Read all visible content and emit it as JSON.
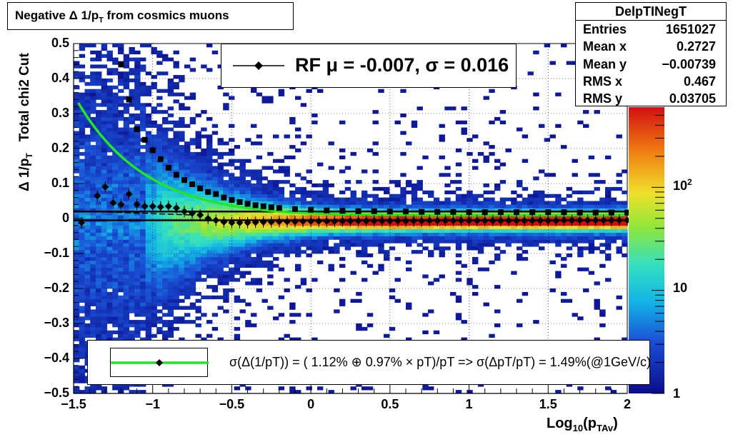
{
  "title": {
    "prefix": "Negative Δ 1/p",
    "sub": "T",
    "suffix": " from cosmics muons"
  },
  "stats": {
    "name": "DelpTINegT",
    "rows": [
      {
        "label": "Entries",
        "value": "1651027"
      },
      {
        "label": "Mean x",
        "value": "0.2727"
      },
      {
        "label": "Mean y",
        "value": "−0.00739"
      },
      {
        "label": "RMS x",
        "value": "0.467"
      },
      {
        "label": "RMS y",
        "value": "0.03705"
      }
    ]
  },
  "rf_legend": "RF μ = -0.007, σ =   0.016",
  "fit_legend": "σ(Δ(1/pT)) = ( 1.12% ⊕  0.97% × pT)/pT => σ(ΔpT/pT) =  1.49%(@1GeV/c)",
  "axes": {
    "ylabel_main": "Δ 1/p",
    "ylabel_sub": "T",
    "ylabel_extra": "Total chi2 Cut",
    "xlabel_main": "Log",
    "xlabel_sub1": "10",
    "xlabel_mid": "(p",
    "xlabel_sub2": "TAv",
    "xlabel_end": ")"
  },
  "colors": {
    "fit_line": "#22e622",
    "markers": "#000000"
  },
  "chart_data": {
    "type": "heatmap",
    "xlim": [
      -1.5,
      2.0
    ],
    "ylim": [
      -0.5,
      0.5
    ],
    "zscale": "log",
    "zlim": [
      1,
      600
    ],
    "grid": true,
    "x_ticks": [
      "−1.5",
      "−1",
      "−0.5",
      "0",
      "0.5",
      "1",
      "1.5",
      "2"
    ],
    "y_ticks": [
      "0.5",
      "0.4",
      "0.3",
      "0.2",
      "0.1",
      "0",
      "−0.1",
      "−0.2",
      "−0.3",
      "−0.4",
      "−0.5"
    ],
    "z_ticks": [
      {
        "label": "1",
        "value": 1
      },
      {
        "label": "10",
        "value": 10
      },
      {
        "label": "10",
        "sup": "2",
        "value": 100
      }
    ],
    "mean_series": {
      "name": "RF",
      "x": [
        -1.45,
        -1.35,
        -1.3,
        -1.25,
        -1.2,
        -1.15,
        -1.1,
        -1.05,
        -1.0,
        -0.95,
        -0.9,
        -0.85,
        -0.8,
        -0.75,
        -0.7,
        -0.65,
        -0.6,
        -0.55,
        -0.5,
        -0.45,
        -0.4,
        -0.35,
        -0.3,
        -0.25,
        -0.2,
        -0.15,
        -0.1,
        -0.05,
        0.0,
        0.05,
        0.1,
        0.15,
        0.2,
        0.25,
        0.3,
        0.35,
        0.4,
        0.45,
        0.5,
        0.55,
        0.6,
        0.65,
        0.7,
        0.75,
        0.8,
        0.85,
        0.9,
        0.95,
        1.0,
        1.05,
        1.1,
        1.15,
        1.2,
        1.25,
        1.3,
        1.35,
        1.4,
        1.45,
        1.5,
        1.55,
        1.6,
        1.65,
        1.7,
        1.75,
        1.8,
        1.85,
        1.9,
        1.95,
        2.0
      ],
      "y": [
        -0.012,
        0.065,
        0.09,
        0.045,
        0.04,
        0.07,
        0.04,
        0.035,
        0.035,
        0.033,
        0.035,
        0.03,
        0.02,
        0.015,
        0.01,
        0.0,
        -0.005,
        -0.01,
        -0.012,
        -0.012,
        -0.012,
        -0.011,
        -0.01,
        -0.01,
        -0.009,
        -0.009,
        -0.009,
        -0.008,
        -0.008,
        -0.008,
        -0.008,
        -0.008,
        -0.007,
        -0.007,
        -0.007,
        -0.007,
        -0.007,
        -0.007,
        -0.007,
        -0.007,
        -0.007,
        -0.007,
        -0.007,
        -0.006,
        -0.006,
        -0.006,
        -0.006,
        -0.006,
        -0.006,
        -0.006,
        -0.006,
        -0.006,
        -0.006,
        -0.006,
        -0.006,
        -0.006,
        -0.006,
        -0.006,
        -0.006,
        -0.006,
        -0.005,
        -0.005,
        -0.005,
        -0.005,
        -0.005,
        -0.005,
        -0.005,
        -0.005,
        -0.005
      ]
    },
    "sigma_series": {
      "name": "sigma",
      "x": [
        -1.2,
        -1.15,
        -1.1,
        -1.05,
        -1.0,
        -0.95,
        -0.9,
        -0.85,
        -0.8,
        -0.75,
        -0.7,
        -0.65,
        -0.6,
        -0.55,
        -0.5,
        -0.45,
        -0.4,
        -0.35,
        -0.3,
        -0.25,
        -0.2,
        -0.1,
        0.0,
        0.1,
        0.2,
        0.3,
        0.4,
        0.5,
        0.6,
        0.7,
        0.8,
        0.9,
        1.0,
        1.1,
        1.2,
        1.3,
        1.4,
        1.5,
        1.6,
        1.7,
        1.8,
        1.9,
        2.0
      ],
      "y": [
        0.44,
        0.34,
        0.255,
        0.225,
        0.195,
        0.17,
        0.145,
        0.125,
        0.11,
        0.098,
        0.086,
        0.076,
        0.07,
        0.06,
        0.053,
        0.047,
        0.042,
        0.038,
        0.035,
        0.032,
        0.03,
        0.027,
        0.025,
        0.023,
        0.022,
        0.021,
        0.021,
        0.02,
        0.02,
        0.019,
        0.019,
        0.019,
        0.018,
        0.018,
        0.018,
        0.018,
        0.018,
        0.018,
        0.018,
        0.017,
        0.017,
        0.017,
        0.017
      ]
    },
    "fit_curve": {
      "p0": 0.0112,
      "p1": 0.0097
    },
    "reference_lines": [
      {
        "y": 0.02
      },
      {
        "y": -0.005
      }
    ]
  }
}
